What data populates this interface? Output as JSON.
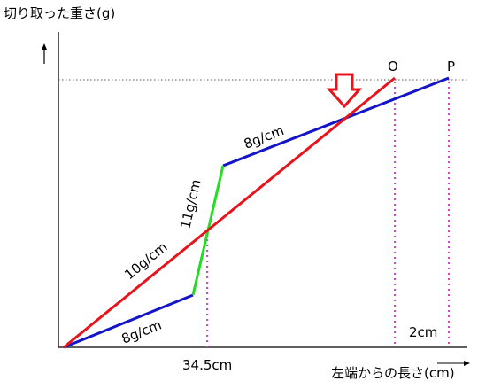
{
  "diagram": {
    "ylabel": "切り取った重さ(g)",
    "xlabel": "左端からの長さ(cm)",
    "point_o": "O",
    "point_p": "P",
    "rate_8_top": "8g/cm",
    "rate_11": "11g/cm",
    "rate_10": "10g/cm",
    "rate_8_bottom": "8g/cm",
    "x_mark": "34.5cm",
    "gap_label": "2cm",
    "colors": {
      "red_line": "#e8141c",
      "blue_line": "#1414c8",
      "green_line": "#22dd22",
      "dotted_pink": "#e040c8",
      "arrow": "#e8141c"
    }
  }
}
